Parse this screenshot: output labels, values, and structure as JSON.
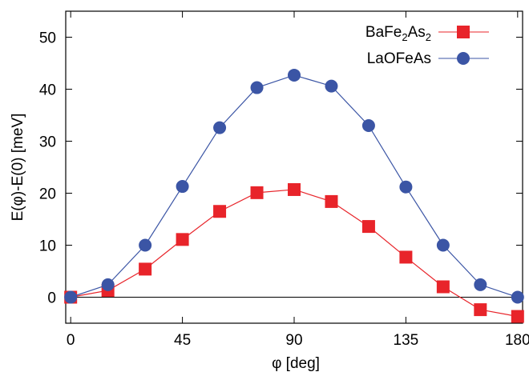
{
  "chart_data": {
    "type": "line",
    "xlabel": "φ [deg]",
    "ylabel": "E(φ)-E(0) [meV]",
    "xlim": [
      -2,
      182
    ],
    "ylim": [
      -5,
      55
    ],
    "xticks": [
      0,
      45,
      90,
      135,
      180
    ],
    "yticks": [
      0,
      10,
      20,
      30,
      40,
      50
    ],
    "zero_line": true,
    "grid": false,
    "legend_position": "top-right",
    "series": [
      {
        "name": "BaFe2As2",
        "legend_base": "BaFe",
        "legend_sub1": "2",
        "legend_mid": "As",
        "legend_sub2": "2",
        "marker": "square",
        "color": "#e8242a",
        "x": [
          0,
          15,
          30,
          45,
          60,
          75,
          90,
          105,
          120,
          135,
          150,
          165,
          180
        ],
        "y": [
          0,
          1.3,
          5.4,
          11.1,
          16.5,
          20.1,
          20.7,
          18.4,
          13.6,
          7.7,
          2.0,
          -2.4,
          -3.7
        ]
      },
      {
        "name": "LaOFeAs",
        "marker": "circle",
        "color": "#3b55a5",
        "x": [
          0,
          15,
          30,
          45,
          60,
          75,
          90,
          105,
          120,
          135,
          150,
          165,
          180
        ],
        "y": [
          0,
          2.4,
          10.0,
          21.3,
          32.6,
          40.3,
          42.7,
          40.6,
          33.0,
          21.2,
          10.0,
          2.4,
          0
        ]
      }
    ]
  }
}
